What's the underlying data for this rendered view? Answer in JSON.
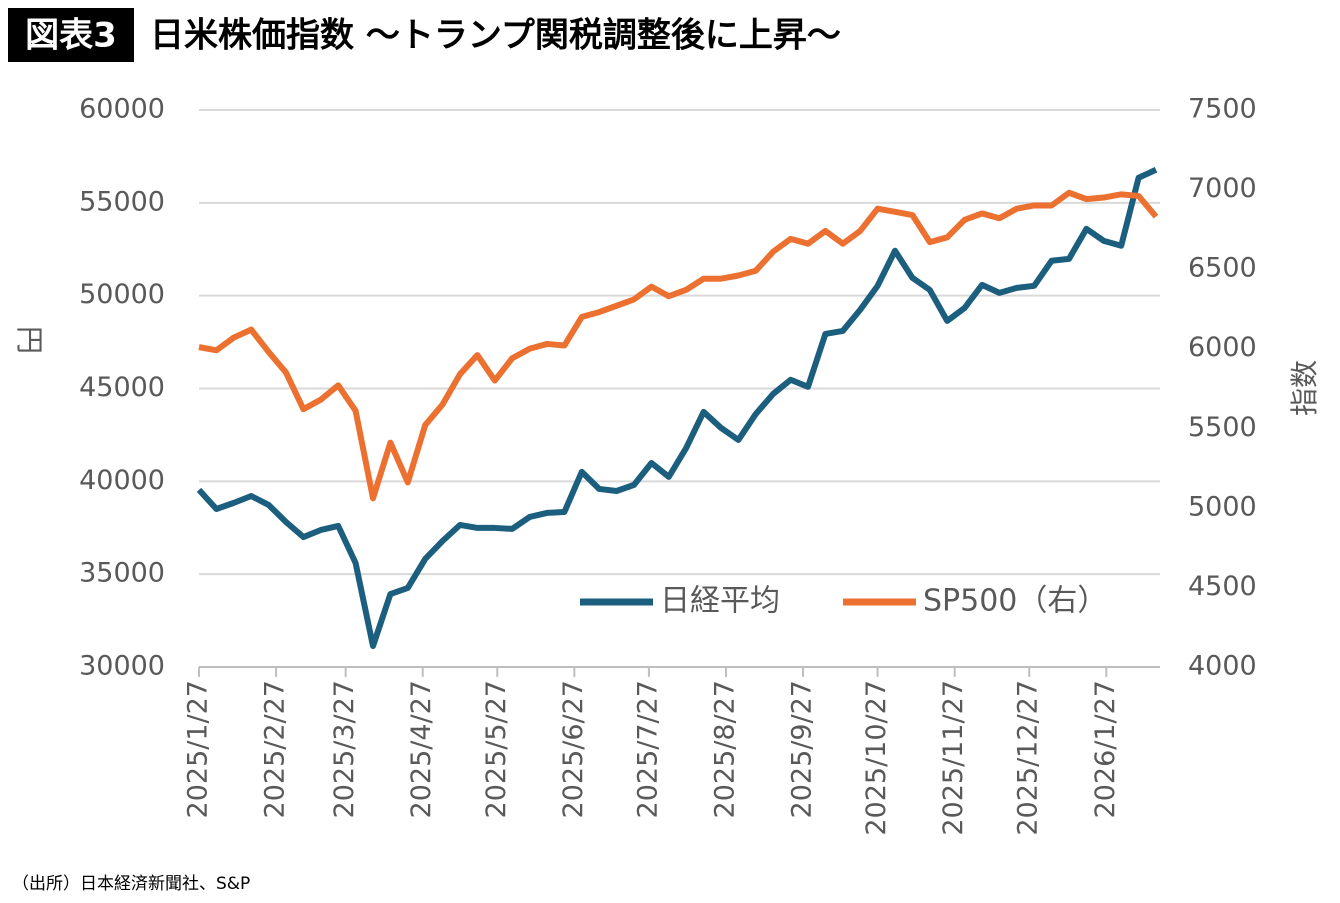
{
  "badge": "図表3",
  "source": "（出所）日本経済新聞社、S&P",
  "chart_data": {
    "type": "line",
    "title": "日米株価指数 ～トランプ関税調整後に上昇～",
    "ylabel": "円",
    "y2label": "指数",
    "x": [
      "2025/1/27",
      "2025/2/3",
      "2025/2/10",
      "2025/2/17",
      "2025/2/24",
      "2025/3/3",
      "2025/3/10",
      "2025/3/17",
      "2025/3/24",
      "2025/3/31",
      "2025/4/7",
      "2025/4/14",
      "2025/4/21",
      "2025/4/28",
      "2025/5/5",
      "2025/5/12",
      "2025/5/19",
      "2025/5/26",
      "2025/6/2",
      "2025/6/9",
      "2025/6/16",
      "2025/6/23",
      "2025/6/30",
      "2025/7/7",
      "2025/7/14",
      "2025/7/21",
      "2025/7/28",
      "2025/8/4",
      "2025/8/11",
      "2025/8/18",
      "2025/8/25",
      "2025/9/1",
      "2025/9/8",
      "2025/9/15",
      "2025/9/22",
      "2025/9/29",
      "2025/10/6",
      "2025/10/13",
      "2025/10/20",
      "2025/10/27",
      "2025/11/3",
      "2025/11/10",
      "2025/11/17",
      "2025/11/24",
      "2025/12/1",
      "2025/12/8",
      "2025/12/15",
      "2025/12/22",
      "2025/12/29",
      "2026/1/5",
      "2026/1/12",
      "2026/1/19",
      "2026/1/26",
      "2026/2/2",
      "2026/2/9",
      "2026/2/16"
    ],
    "xticks": [
      "2025/1/27",
      "2025/2/27",
      "2025/3/27",
      "2025/4/27",
      "2025/5/27",
      "2025/6/27",
      "2025/7/27",
      "2025/8/27",
      "2025/9/27",
      "2025/10/27",
      "2025/11/27",
      "2025/12/27",
      "2026/1/27"
    ],
    "series": [
      {
        "name": "日経平均",
        "color": "#1b5e7e",
        "values": [
          39540,
          38510,
          38840,
          39210,
          38730,
          37810,
          37000,
          37380,
          37600,
          35600,
          31130,
          33930,
          34260,
          35820,
          36790,
          37650,
          37490,
          37490,
          37440,
          38080,
          38300,
          38350,
          40510,
          39590,
          39480,
          39810,
          40990,
          40240,
          41800,
          43740,
          42880,
          42230,
          43630,
          44710,
          45470,
          45090,
          47940,
          48100,
          49240,
          50530,
          52420,
          50960,
          50310,
          48640,
          49340,
          50580,
          50150,
          50420,
          50530,
          51880,
          51980,
          53600,
          52950,
          52690,
          56350,
          56780
        ]
      },
      {
        "name": "SP500（右）",
        "color": "#ec7131",
        "axis": "y2",
        "values": [
          6010,
          5990,
          6070,
          6120,
          5980,
          5850,
          5620,
          5680,
          5770,
          5610,
          5060,
          5410,
          5160,
          5520,
          5650,
          5840,
          5960,
          5800,
          5940,
          6000,
          6030,
          6020,
          6200,
          6230,
          6270,
          6310,
          6390,
          6330,
          6370,
          6440,
          6440,
          6460,
          6490,
          6610,
          6690,
          6660,
          6740,
          6660,
          6740,
          6880,
          6860,
          6840,
          6670,
          6700,
          6810,
          6850,
          6820,
          6880,
          6900,
          6900,
          6980,
          6940,
          6950,
          6970,
          6960,
          6830
        ]
      }
    ],
    "ylim": [
      30000,
      60000
    ],
    "yticks": [
      30000,
      35000,
      40000,
      45000,
      50000,
      55000,
      60000
    ],
    "y2lim": [
      4000,
      7500
    ],
    "y2ticks": [
      4000,
      4500,
      5000,
      5500,
      6000,
      6500,
      7000,
      7500
    ],
    "grid": true,
    "legend": "lower right"
  }
}
